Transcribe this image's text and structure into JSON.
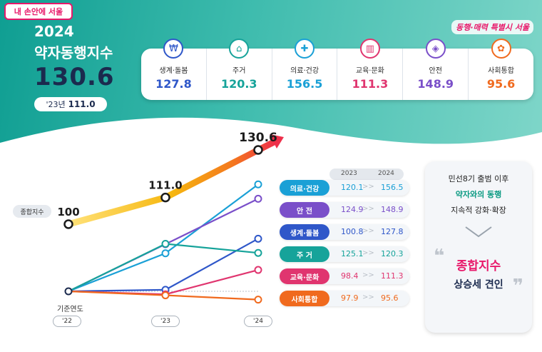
{
  "header": {
    "logo_text": "내 손안에 서울",
    "year": "2024",
    "title": "약자동행지수",
    "index_value": "130.6",
    "prev_label": "'23년",
    "prev_value": "111.0",
    "slogan": "동행·매력 특별시 서울"
  },
  "categories": [
    {
      "label": "생계·돌봄",
      "value": "127.8",
      "color": "#2f57c9",
      "icon": "wallet-hand-icon"
    },
    {
      "label": "주거",
      "value": "120.3",
      "color": "#16a39a",
      "icon": "house-icon"
    },
    {
      "label": "의료·건강",
      "value": "156.5",
      "color": "#1aa0d6",
      "icon": "health-hand-icon"
    },
    {
      "label": "교육·문화",
      "value": "111.3",
      "color": "#e0356f",
      "icon": "book-icon"
    },
    {
      "label": "안전",
      "value": "148.9",
      "color": "#7a4fc9",
      "icon": "shield-icon"
    },
    {
      "label": "사회통합",
      "value": "95.6",
      "color": "#f06a1e",
      "icon": "people-icon"
    }
  ],
  "chart_data": {
    "type": "line",
    "x": [
      "'22",
      "'23",
      "'24"
    ],
    "xlabel": "기준연도",
    "series": [
      {
        "name": "종합지수",
        "values": [
          100,
          111.0,
          130.6
        ],
        "color": "#f6b70f"
      },
      {
        "name": "의료·건강",
        "values": [
          100,
          120.1,
          156.5
        ],
        "color": "#1aa0d6"
      },
      {
        "name": "안 전",
        "values": [
          100,
          124.9,
          148.9
        ],
        "color": "#7a4fc9"
      },
      {
        "name": "생계·돌봄",
        "values": [
          100,
          100.8,
          127.8
        ],
        "color": "#2f57c9"
      },
      {
        "name": "주 거",
        "values": [
          100,
          125.1,
          120.3
        ],
        "color": "#16a39a"
      },
      {
        "name": "교육·문화",
        "values": [
          100,
          98.4,
          111.3
        ],
        "color": "#e0356f"
      },
      {
        "name": "사회통합",
        "values": [
          100,
          97.9,
          95.6
        ],
        "color": "#f06a1e"
      }
    ],
    "data_labels": [
      "100",
      "111.0",
      "130.6"
    ],
    "series_label": "종합지수"
  },
  "table": {
    "year1": "2023",
    "year2": "2024",
    "arrow": ">>",
    "rows": [
      {
        "label": "의료·건강",
        "v2023": "120.1",
        "v2024": "156.5",
        "color": "#1aa0d6"
      },
      {
        "label": "안 전",
        "v2023": "124.9",
        "v2024": "148.9",
        "color": "#7a4fc9"
      },
      {
        "label": "생계·돌봄",
        "v2023": "100.8",
        "v2024": "127.8",
        "color": "#2f57c9"
      },
      {
        "label": "주 거",
        "v2023": "125.1",
        "v2024": "120.3",
        "color": "#16a39a"
      },
      {
        "label": "교육·문화",
        "v2023": "98.4",
        "v2024": "111.3",
        "color": "#e0356f"
      },
      {
        "label": "사회통합",
        "v2023": "97.9",
        "v2024": "95.6",
        "color": "#f06a1e"
      }
    ]
  },
  "side": {
    "line1": "민선8기 출범 이후",
    "line2": "약자와의 동행",
    "line3": "지속적 강화·확장",
    "quote_open": "❝",
    "highlight": "종합지수",
    "line5": "상승세 견인",
    "quote_close": "❞"
  }
}
